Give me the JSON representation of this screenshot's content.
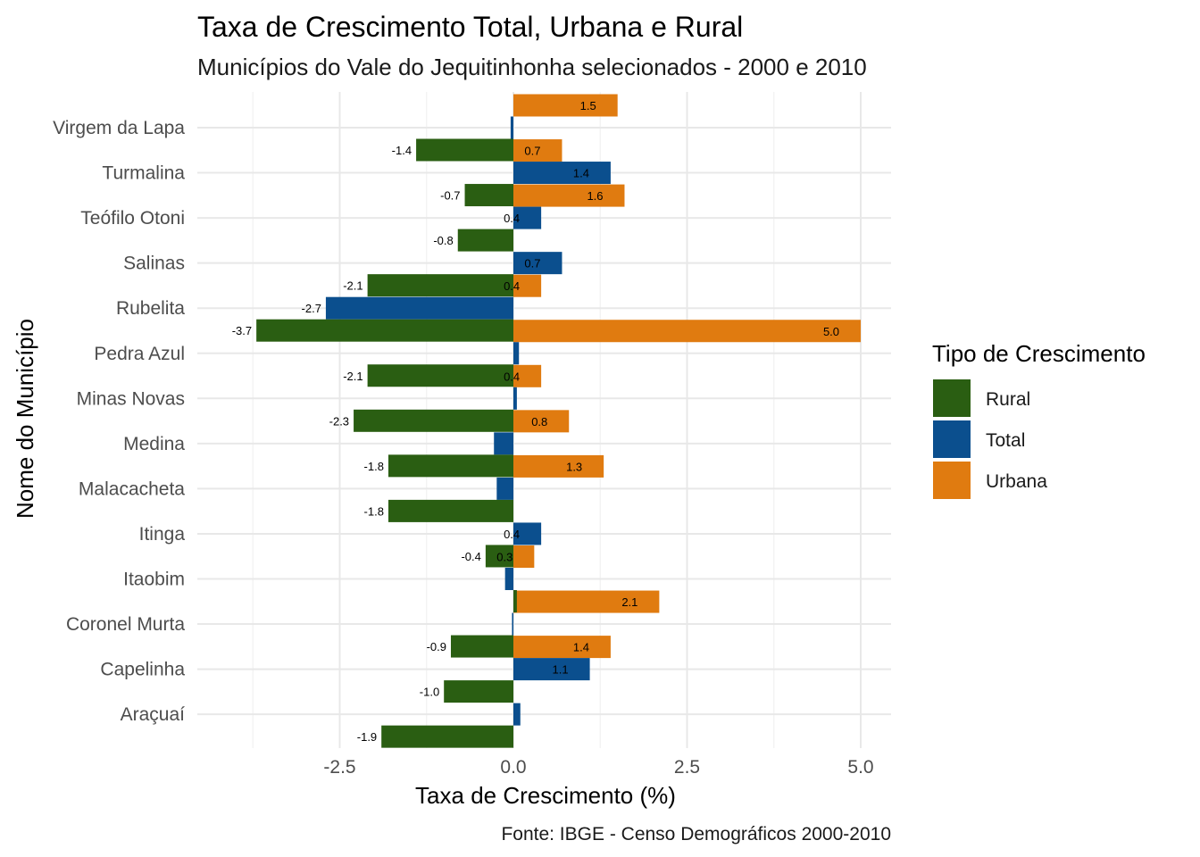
{
  "chart_data": {
    "type": "bar",
    "orientation": "horizontal",
    "title": "Taxa de Crescimento Total, Urbana e Rural",
    "subtitle": "Municípios do Vale do Jequitinhonha selecionados - 2000 e 2010",
    "xlabel": "Taxa de Crescimento (%)",
    "ylabel": "Nome do Município",
    "caption": "Fonte: IBGE - Censo Demográficos 2000-2010",
    "xlim": [
      -4.6,
      5.45
    ],
    "x_ticks": [
      -2.5,
      0.0,
      2.5,
      5.0
    ],
    "x_tick_labels": [
      "-2.5",
      "0.0",
      "2.5",
      "5.0"
    ],
    "grid": true,
    "categories": [
      "Virgem da Lapa",
      "Turmalina",
      "Teófilo Otoni",
      "Salinas",
      "Rubelita",
      "Pedra Azul",
      "Minas Novas",
      "Medina",
      "Malacacheta",
      "Itinga",
      "Itaobim",
      "Coronel Murta",
      "Capelinha",
      "Araçuaí"
    ],
    "series": [
      {
        "name": "Urbana",
        "color": "#E07B10",
        "values": [
          1.5,
          0.7,
          1.6,
          null,
          0.4,
          5.0,
          0.4,
          0.8,
          1.3,
          null,
          0.3,
          2.1,
          1.4,
          null
        ],
        "labels": [
          "1.5",
          "0.7",
          "1.6",
          "",
          "0.4",
          "5.0",
          "0.4",
          "0.8",
          "1.3",
          "",
          "0.3",
          "2.1",
          "1.4",
          ""
        ]
      },
      {
        "name": "Total",
        "color": "#0B4F8E",
        "values": [
          -0.04,
          1.4,
          0.4,
          0.7,
          -2.7,
          0.08,
          0.05,
          -0.28,
          -0.24,
          0.4,
          -0.12,
          -0.02,
          1.1,
          0.1
        ],
        "labels": [
          "",
          "1.4",
          "0.4",
          "0.7",
          "-2.7",
          "",
          "",
          "",
          "",
          "0.4",
          "",
          "",
          "1.1",
          ""
        ]
      },
      {
        "name": "Rural",
        "color": "#2A5E12",
        "values": [
          -1.4,
          -0.7,
          -0.8,
          -2.1,
          -3.7,
          -2.1,
          -2.3,
          -1.8,
          -1.8,
          -0.4,
          0.05,
          -0.9,
          -1.0,
          -1.9
        ],
        "labels": [
          "-1.4",
          "-0.7",
          "-0.8",
          "-2.1",
          "-3.7",
          "-2.1",
          "-2.3",
          "-1.8",
          "-1.8",
          "-0.4",
          "",
          "-0.9",
          "-1.0",
          "-1.9"
        ]
      }
    ],
    "legend": {
      "title": "Tipo de Crescimento",
      "position": "right",
      "entries": [
        {
          "name": "Rural",
          "color": "#2A5E12"
        },
        {
          "name": "Total",
          "color": "#0B4F8E"
        },
        {
          "name": "Urbana",
          "color": "#E07B10"
        }
      ]
    }
  }
}
